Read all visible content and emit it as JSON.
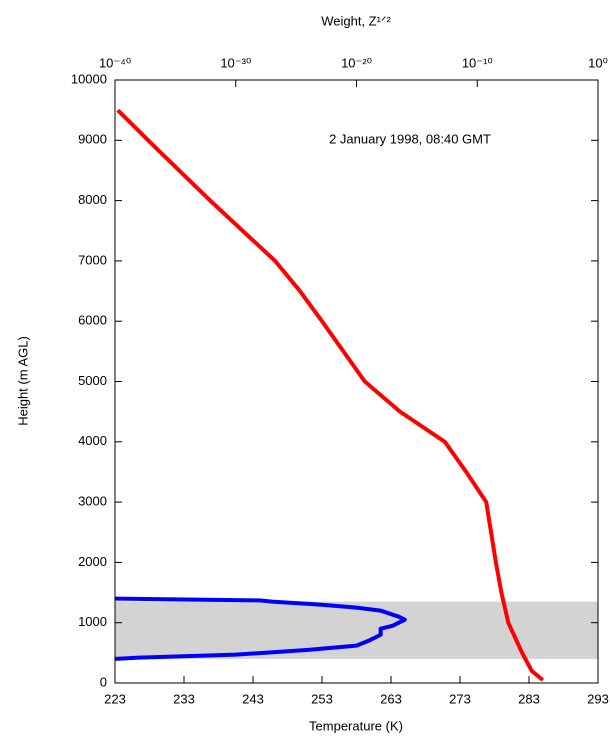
{
  "chart_data": {
    "type": "line",
    "annotation": "2 January 1998, 08:40 GMT",
    "xlabel": "Temperature (K)",
    "ylabel": "Height (m AGL)",
    "x2label": "Weight, Z¹ᐟ²",
    "xlim": [
      223,
      293
    ],
    "xticks": [
      223,
      233,
      243,
      253,
      263,
      273,
      283,
      293
    ],
    "x2lim": [
      1e-40,
      1
    ],
    "x2log": true,
    "x2ticks": [
      {
        "value": 1e-40,
        "label": "10⁻⁴⁰"
      },
      {
        "value": 1e-30,
        "label": "10⁻³⁰"
      },
      {
        "value": 1e-20,
        "label": "10⁻²⁰"
      },
      {
        "value": 1e-10,
        "label": "10⁻¹⁰"
      },
      {
        "value": 1,
        "label": "10⁰"
      }
    ],
    "ylim": [
      0,
      10000
    ],
    "yticks": [
      0,
      1000,
      2000,
      3000,
      4000,
      5000,
      6000,
      7000,
      8000,
      9000,
      10000
    ],
    "shade": {
      "ylim": [
        400,
        1350
      ],
      "color": "#d3d3d3"
    },
    "xlabel_color": "#ff4040",
    "x2label_color": "#2020ff",
    "series": [
      {
        "color": "#ff0000",
        "axis": "x",
        "x": [
          285,
          283.4,
          282,
          280,
          279,
          278.2,
          277.5,
          276.8,
          273.9,
          270.8,
          264.3,
          259.2,
          253,
          249.8,
          246.2,
          236.8,
          227.8,
          223.4
        ],
        "values": [
          50,
          200,
          500,
          1000,
          1500,
          2000,
          2500,
          3000,
          3500,
          4000,
          4500,
          5000,
          6000,
          6500,
          7000,
          8000,
          9000,
          9500
        ]
      },
      {
        "color": "#0000ff",
        "axis": "x2",
        "x": [
          1e-40,
          1e-28,
          1e-27,
          1e-23,
          1e-20,
          1e-18,
          3.16e-17,
          1e-16,
          1e-17,
          1e-18,
          1e-18,
          1e-19,
          1e-20,
          1e-24,
          1e-30,
          1e-38,
          1e-40
        ],
        "values": [
          1400,
          1370,
          1350,
          1300,
          1250,
          1200,
          1100,
          1050,
          950,
          900,
          800,
          700,
          620,
          550,
          470,
          420,
          400
        ]
      }
    ]
  }
}
